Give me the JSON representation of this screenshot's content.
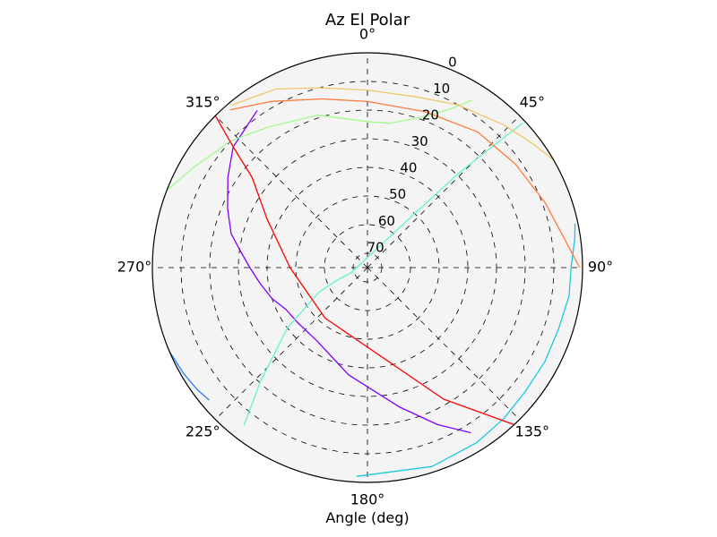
{
  "chart_data": {
    "type": "polar-line",
    "title": "Az El Polar",
    "xlabel": "Angle (deg)",
    "theta_direction": "clockwise",
    "theta_zero": "top",
    "theta_ticks": [
      {
        "deg": 0,
        "label": "0°"
      },
      {
        "deg": 45,
        "label": "45°"
      },
      {
        "deg": 90,
        "label": "90°"
      },
      {
        "deg": 135,
        "label": "135°"
      },
      {
        "deg": 180,
        "label": "180°"
      },
      {
        "deg": 225,
        "label": "225°"
      },
      {
        "deg": 270,
        "label": "270°"
      },
      {
        "deg": 315,
        "label": "315°"
      }
    ],
    "r_axis": {
      "outer_value": 0,
      "center_value": 75,
      "reversed": true
    },
    "r_ticks": [
      {
        "value": 0,
        "label": "0"
      },
      {
        "value": 10,
        "label": "10"
      },
      {
        "value": 20,
        "label": "20"
      },
      {
        "value": 30,
        "label": "30"
      },
      {
        "value": 40,
        "label": "40"
      },
      {
        "value": 50,
        "label": "50"
      },
      {
        "value": 60,
        "label": "60"
      },
      {
        "value": 70,
        "label": "70"
      }
    ],
    "grid": true,
    "background": "#f4f4f4",
    "series": [
      {
        "color": "#8000ff",
        "az": [
          325,
          312,
          303,
          293,
          284,
          278,
          270,
          262,
          252,
          243,
          232,
          215,
          190,
          167,
          156,
          148
        ],
        "el": [
          8,
          12,
          17,
          22,
          26,
          30,
          34,
          37,
          40,
          43,
          44,
          44,
          37,
          25,
          15,
          7
        ]
      },
      {
        "color": "#2c7ef7",
        "az": [
          252,
          247,
          240,
          234,
          230
        ],
        "el": [
          -1,
          0,
          1,
          2,
          3
        ]
      },
      {
        "color": "#1ac8e0",
        "az": [
          183,
          162,
          148,
          138,
          128,
          118,
          108,
          98,
          90,
          82,
          78
        ],
        "el": [
          2,
          2,
          3,
          4,
          5,
          5,
          5,
          4,
          4,
          2,
          1
        ]
      },
      {
        "color": "#62f4cb",
        "az": [
          218,
          223,
          233,
          243,
          248,
          252,
          42,
          44,
          46,
          47
        ],
        "el": [
          5,
          20,
          40,
          56,
          64,
          69,
          46,
          29,
          13,
          1
        ]
      },
      {
        "color": "#a2f98b",
        "az": [
          291,
          300,
          313,
          325,
          342,
          360,
          9,
          20,
          28,
          32
        ],
        "el": [
          0,
          5,
          10,
          15,
          19,
          24,
          24,
          19,
          12,
          6
        ]
      },
      {
        "color": "#ecc86b",
        "az": [
          320,
          333,
          345,
          360,
          16,
          29,
          44,
          53,
          60
        ],
        "el": [
          1,
          5,
          10,
          13,
          13,
          10,
          6,
          3,
          0
        ]
      },
      {
        "color": "#ff7a3c",
        "az": [
          319,
          330,
          345,
          360,
          20,
          39,
          55,
          70,
          90
        ],
        "el": [
          2,
          8,
          14,
          17,
          17,
          14,
          12,
          9,
          1
        ]
      },
      {
        "color": "#ff0000",
        "az": [
          315,
          312,
          308,
          296,
          270,
          220,
          150,
          137
        ],
        "el": [
          0,
          12,
          24,
          36,
          48,
          52,
          22,
          0
        ]
      }
    ]
  }
}
